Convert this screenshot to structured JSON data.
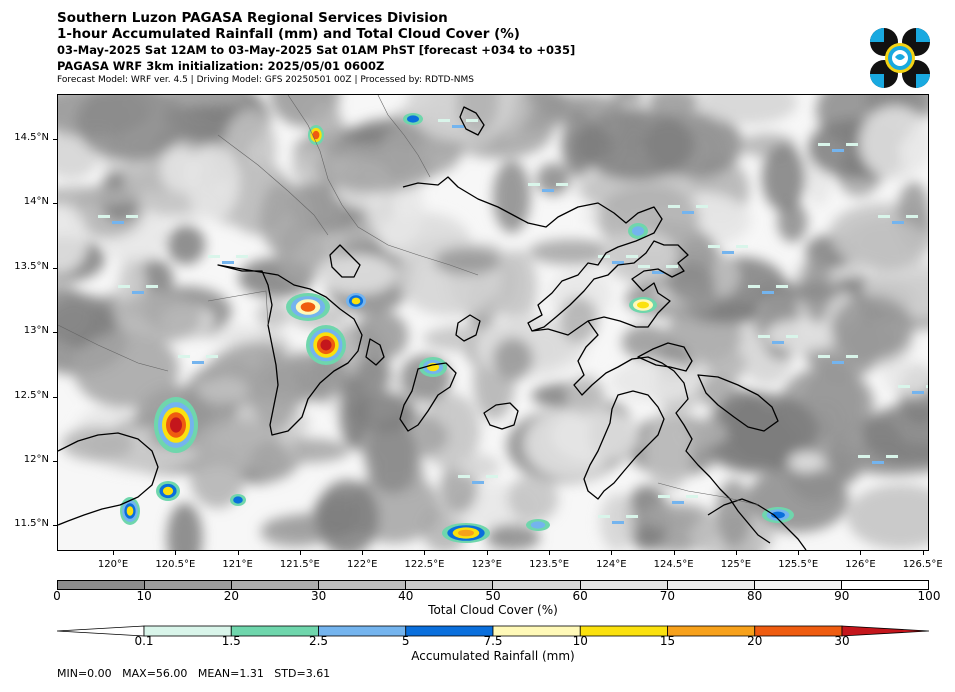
{
  "header": {
    "line1": "Southern Luzon PAGASA Regional Services Division",
    "line2": "1-hour Accumulated Rainfall (mm) and Total Cloud Cover (%)",
    "line3": "03-May-2025 Sat 12AM to 03-May-2025 Sat 01AM PhST [forecast +034 to +035]",
    "line4": "PAGASA WRF 3km initialization: 2025/05/01 0600Z",
    "line5": "Forecast Model: WRF ver. 4.5 | Driving Model: GFS 20250501 00Z | Processed by: RDTD-NMS"
  },
  "map": {
    "lat_labels": [
      "14.5°N",
      "14°N",
      "13.5°N",
      "13°N",
      "12.5°N",
      "12°N",
      "11.5°N"
    ],
    "lat_values": [
      14.5,
      14.0,
      13.5,
      13.0,
      12.5,
      12.0,
      11.5
    ],
    "lon_labels": [
      "120°E",
      "120.5°E",
      "121°E",
      "121.5°E",
      "122°E",
      "122.5°E",
      "123°E",
      "123.5°E",
      "124°E",
      "124.5°E",
      "125°E",
      "125.5°E",
      "126°E",
      "126.5°E"
    ],
    "lon_values": [
      120.0,
      120.5,
      121.0,
      121.5,
      122.0,
      122.5,
      123.0,
      123.5,
      124.0,
      124.5,
      125.0,
      125.5,
      126.0,
      126.5
    ],
    "lon_range": [
      119.55,
      126.55
    ],
    "lat_range": [
      11.3,
      14.85
    ]
  },
  "cloud_colorbar": {
    "title": "Total Cloud Cover (%)",
    "labels": [
      "0",
      "10",
      "20",
      "30",
      "40",
      "50",
      "60",
      "70",
      "80",
      "90",
      "100"
    ],
    "colors": [
      "#8c8c8c",
      "#9c9c9c",
      "#acacac",
      "#bcbcbc",
      "#cbcbcb",
      "#d8d8d8",
      "#e3e3e3",
      "#ececec",
      "#f4f4f4",
      "#ffffff"
    ]
  },
  "rain_colorbar": {
    "title": "Accumulated Rainfall (mm)",
    "labels": [
      "0.1",
      "1.5",
      "2.5",
      "5",
      "7.5",
      "10",
      "15",
      "20",
      "30"
    ],
    "colors": [
      "#ffffff",
      "#d9f5ea",
      "#6fd6ac",
      "#74b4ee",
      "#0a6fdc",
      "#fff9b8",
      "#fbe10e",
      "#f7a11b",
      "#ef5c10",
      "#c4161c"
    ]
  },
  "stats": {
    "text": "MIN=0.00   MAX=56.00   MEAN=1.31   STD=3.61"
  },
  "logo": {
    "name": "PAGASA"
  }
}
